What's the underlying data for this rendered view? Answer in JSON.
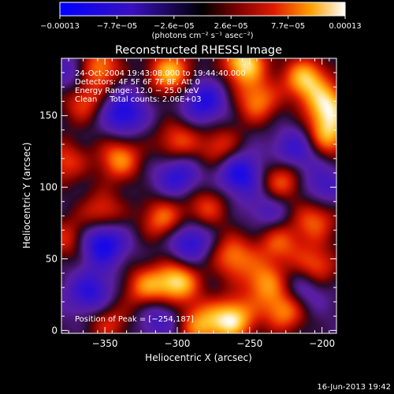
{
  "chart_data": {
    "type": "heatmap",
    "title": "Reconstructed RHESSI Image",
    "xlabel": "Heliocentric X (arcsec)",
    "ylabel": "Heliocentric Y (arcsec)",
    "xlim": [
      -380,
      -190
    ],
    "ylim": [
      -2,
      190
    ],
    "x_ticks": [
      -350,
      -300,
      -250,
      -200
    ],
    "y_ticks": [
      0,
      50,
      100,
      150
    ],
    "x_tick_labels": [
      "−350",
      "−300",
      "−250",
      "−200"
    ],
    "y_tick_labels": [
      "0",
      "50",
      "100",
      "150"
    ],
    "colorbar": {
      "range": [
        -0.00013,
        0.00013
      ],
      "tick_labels": [
        "−0.00013",
        "−7.7e−05",
        "−2.6e−05",
        "2.6e−05",
        "7.7e−05",
        "0.00013"
      ],
      "unit": "(photons cm⁻² s⁻¹ asec⁻²)"
    },
    "info_lines": [
      "24-Oct-2004 19:43:08.000 to 19:44:40.000",
      "Detectors: 4F 5F 6F 7F 8F, Att 0",
      "Energy Range: 12.0 − 25.0 keV",
      "Clean     Total counts: 2.06E+03"
    ],
    "peak_label": "Position of Peak = [−254,187]",
    "peak_position": [
      -254,
      187
    ],
    "sources": [
      {
        "x": -355,
        "y": 184,
        "v": 0.8
      },
      {
        "x": -305,
        "y": 180,
        "v": 0.9
      },
      {
        "x": -254,
        "y": 187,
        "v": 1.0
      },
      {
        "x": -245,
        "y": 160,
        "v": 0.7
      },
      {
        "x": -212,
        "y": 176,
        "v": 0.9
      },
      {
        "x": -196,
        "y": 157,
        "v": 0.9
      },
      {
        "x": -196,
        "y": 136,
        "v": 0.8
      },
      {
        "x": -365,
        "y": 160,
        "v": 0.6
      },
      {
        "x": -340,
        "y": 120,
        "v": 0.75
      },
      {
        "x": -300,
        "y": 132,
        "v": 0.6
      },
      {
        "x": -270,
        "y": 128,
        "v": 0.55
      },
      {
        "x": -352,
        "y": 82,
        "v": 0.6
      },
      {
        "x": -310,
        "y": 78,
        "v": 0.7
      },
      {
        "x": -280,
        "y": 86,
        "v": 0.55
      },
      {
        "x": -228,
        "y": 104,
        "v": 0.7
      },
      {
        "x": -205,
        "y": 78,
        "v": 0.65
      },
      {
        "x": -262,
        "y": 52,
        "v": 0.7
      },
      {
        "x": -230,
        "y": 62,
        "v": 0.6
      },
      {
        "x": -300,
        "y": 34,
        "v": 0.95
      },
      {
        "x": -322,
        "y": 30,
        "v": 0.7
      },
      {
        "x": -240,
        "y": 34,
        "v": 0.7
      },
      {
        "x": -205,
        "y": 44,
        "v": 0.7
      },
      {
        "x": -262,
        "y": 8,
        "v": 1.0
      },
      {
        "x": -285,
        "y": 4,
        "v": 0.75
      },
      {
        "x": -226,
        "y": 14,
        "v": 0.75
      },
      {
        "x": -348,
        "y": 6,
        "v": 0.5
      },
      {
        "x": -376,
        "y": 64,
        "v": 0.5
      },
      {
        "x": -378,
        "y": 118,
        "v": 0.55
      }
    ],
    "dips": [
      {
        "x": -338,
        "y": 152,
        "v": -0.7
      },
      {
        "x": -282,
        "y": 160,
        "v": -0.65
      },
      {
        "x": -257,
        "y": 110,
        "v": -0.75
      },
      {
        "x": -300,
        "y": 108,
        "v": -0.6
      },
      {
        "x": -352,
        "y": 62,
        "v": -0.85
      },
      {
        "x": -292,
        "y": 62,
        "v": -0.65
      },
      {
        "x": -360,
        "y": 26,
        "v": -0.6
      },
      {
        "x": -312,
        "y": 10,
        "v": -0.45
      },
      {
        "x": -218,
        "y": 126,
        "v": -0.55
      },
      {
        "x": -200,
        "y": 100,
        "v": -0.45
      },
      {
        "x": -212,
        "y": 30,
        "v": -0.5
      },
      {
        "x": -372,
        "y": 180,
        "v": -0.45
      },
      {
        "x": -235,
        "y": 84,
        "v": -0.4
      }
    ]
  },
  "footer": {
    "timestamp": "16-Jun-2013 19:42"
  }
}
